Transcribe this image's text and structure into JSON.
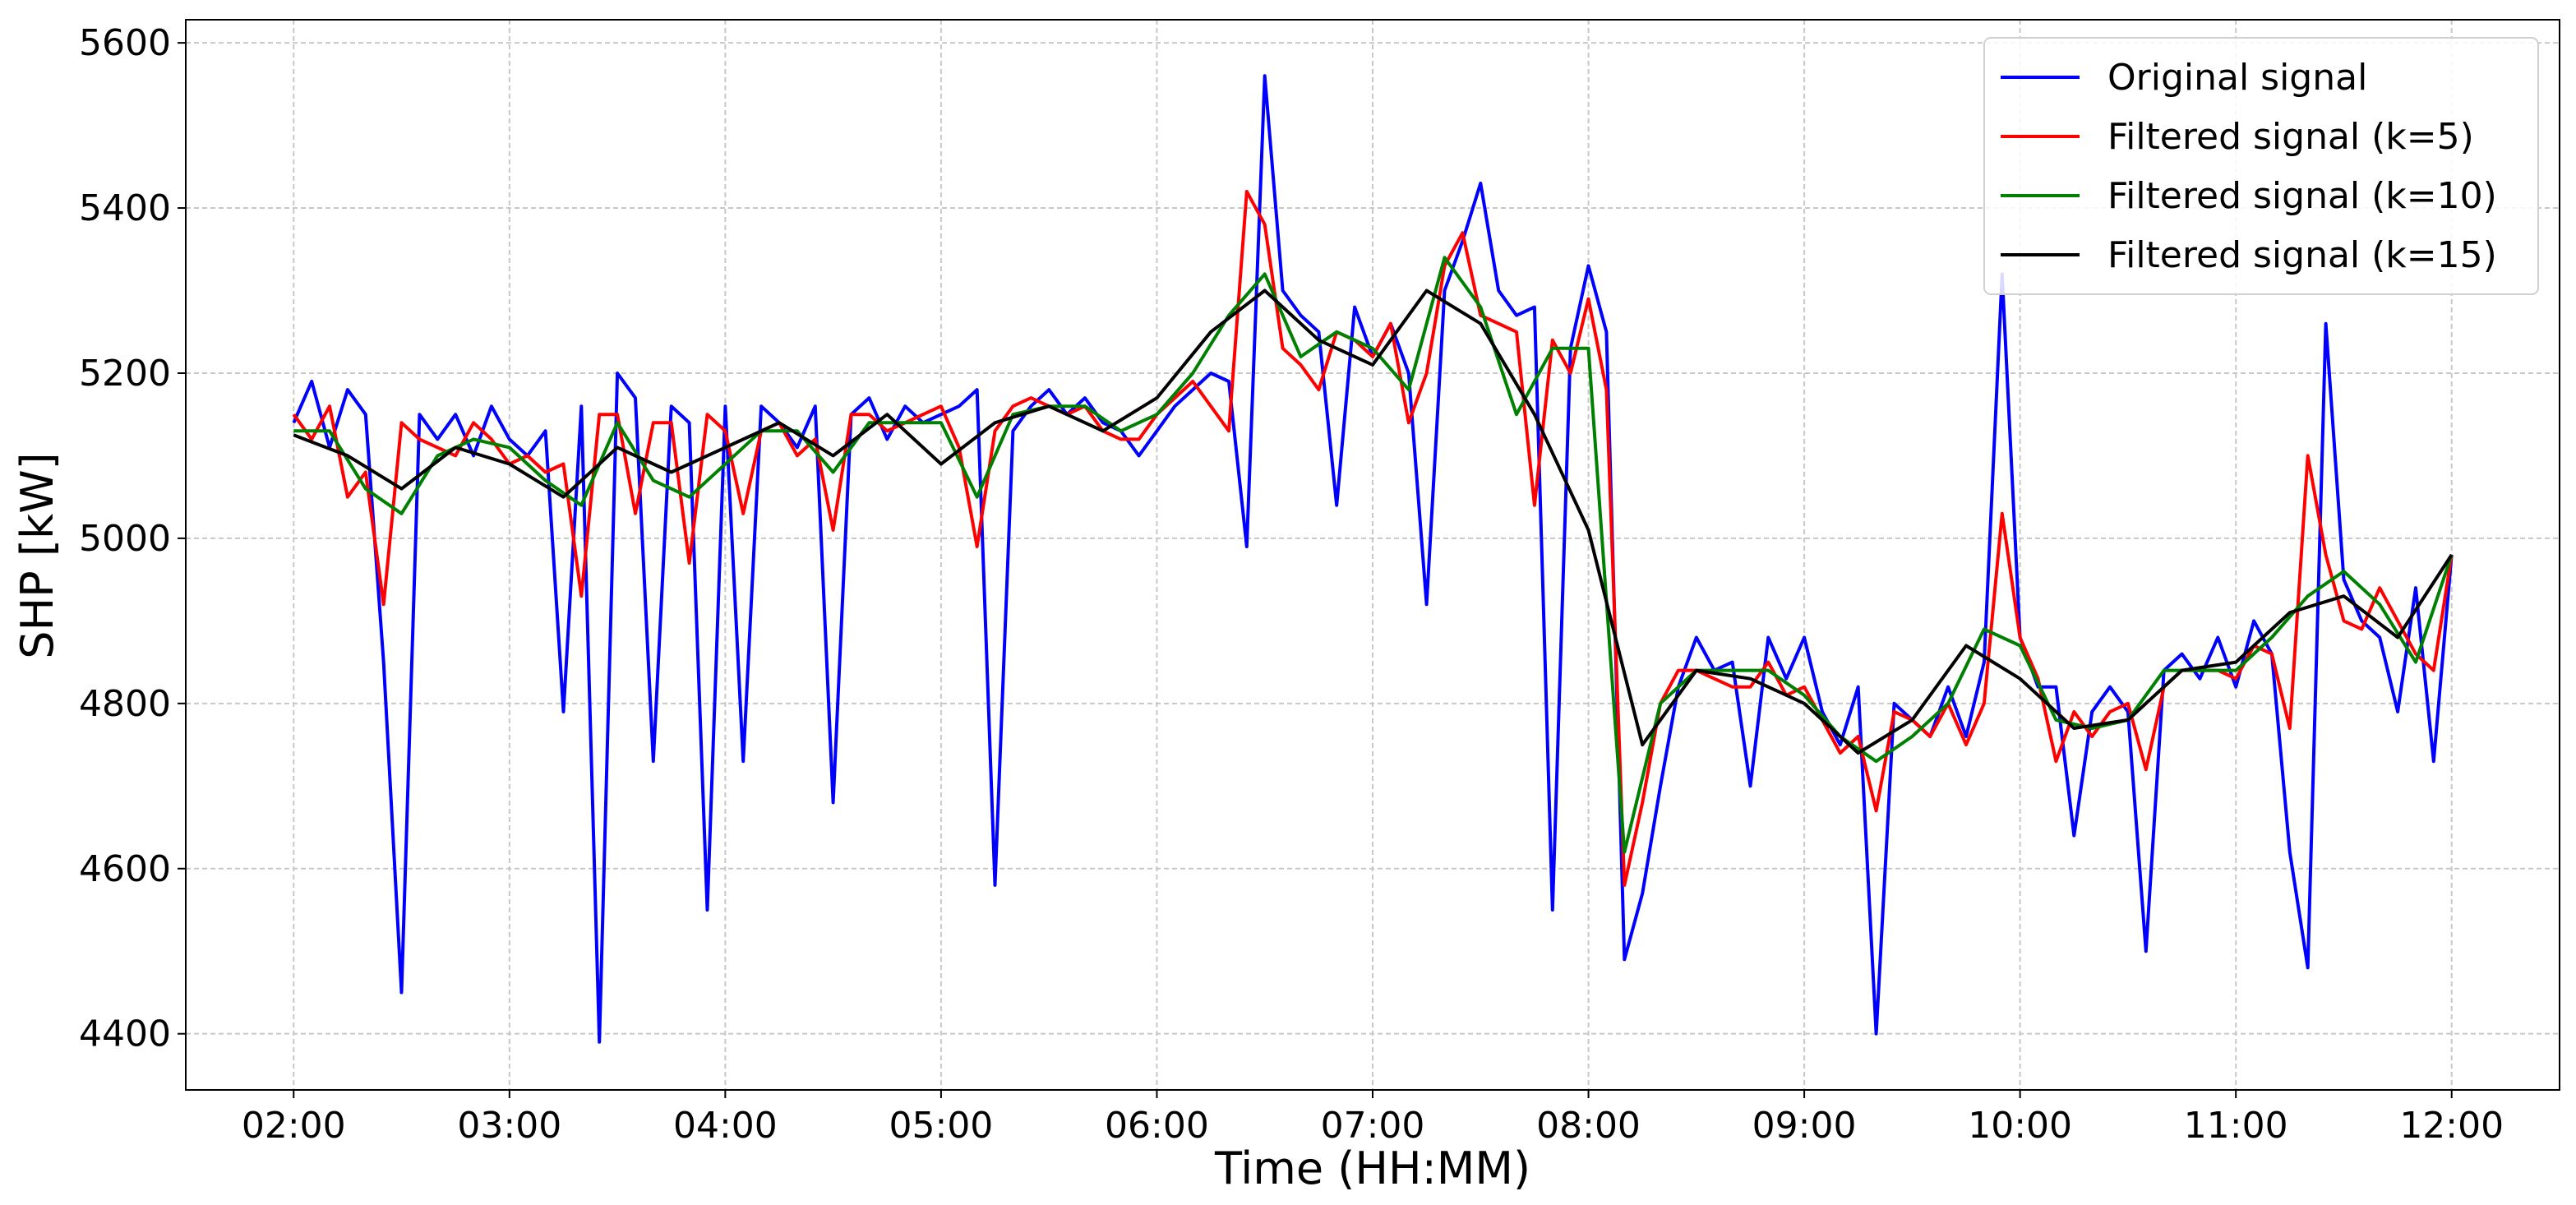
{
  "chart_data": {
    "type": "line",
    "x_label": "Time (HH:MM)",
    "y_label": "SHP [kW]",
    "x": [
      "02:00",
      "02:05",
      "02:10",
      "02:15",
      "02:20",
      "02:25",
      "02:30",
      "02:35",
      "02:40",
      "02:45",
      "02:50",
      "02:55",
      "03:00",
      "03:05",
      "03:10",
      "03:15",
      "03:20",
      "03:25",
      "03:30",
      "03:35",
      "03:40",
      "03:45",
      "03:50",
      "03:55",
      "04:00",
      "04:05",
      "04:10",
      "04:15",
      "04:20",
      "04:25",
      "04:30",
      "04:35",
      "04:40",
      "04:45",
      "04:50",
      "04:55",
      "05:00",
      "05:05",
      "05:10",
      "05:15",
      "05:20",
      "05:25",
      "05:30",
      "05:35",
      "05:40",
      "05:45",
      "05:50",
      "05:55",
      "06:00",
      "06:05",
      "06:10",
      "06:15",
      "06:20",
      "06:25",
      "06:30",
      "06:35",
      "06:40",
      "06:45",
      "06:50",
      "06:55",
      "07:00",
      "07:05",
      "07:10",
      "07:15",
      "07:20",
      "07:25",
      "07:30",
      "07:35",
      "07:40",
      "07:45",
      "07:50",
      "07:55",
      "08:00",
      "08:05",
      "08:10",
      "08:15",
      "08:20",
      "08:25",
      "08:30",
      "08:35",
      "08:40",
      "08:45",
      "08:50",
      "08:55",
      "09:00",
      "09:05",
      "09:10",
      "09:15",
      "09:20",
      "09:25",
      "09:30",
      "09:35",
      "09:40",
      "09:45",
      "09:50",
      "09:55",
      "10:00",
      "10:05",
      "10:10",
      "10:15",
      "10:20",
      "10:25",
      "10:30",
      "10:35",
      "10:40",
      "10:45",
      "10:50",
      "10:55",
      "11:00",
      "11:05",
      "11:10",
      "11:15",
      "11:20",
      "11:25",
      "11:30",
      "11:35",
      "11:40",
      "11:45",
      "11:50",
      "11:55",
      "12:00"
    ],
    "series": [
      {
        "name": "Original signal",
        "color": "#0000ff",
        "values": [
          5140,
          5190,
          5110,
          5180,
          5150,
          4850,
          4450,
          5150,
          5120,
          5150,
          5100,
          5160,
          5120,
          5100,
          5130,
          4790,
          5160,
          4390,
          5200,
          5170,
          4730,
          5160,
          5140,
          4550,
          5160,
          4730,
          5160,
          5140,
          5110,
          5160,
          4680,
          5150,
          5170,
          5120,
          5160,
          5140,
          5150,
          5160,
          5180,
          4580,
          5130,
          5160,
          5180,
          5150,
          5170,
          5140,
          5130,
          5100,
          5130,
          5160,
          5180,
          5200,
          5190,
          4990,
          5560,
          5300,
          5270,
          5250,
          5040,
          5280,
          5220,
          5260,
          5200,
          4920,
          5300,
          5360,
          5430,
          5300,
          5270,
          5280,
          4550,
          5230,
          5330,
          5250,
          4490,
          4570,
          4700,
          4820,
          4880,
          4840,
          4850,
          4700,
          4880,
          4830,
          4880,
          4790,
          4750,
          4820,
          4400,
          4800,
          4780,
          4760,
          4820,
          4760,
          4850,
          5320,
          4880,
          4820,
          4820,
          4640,
          4790,
          4820,
          4790,
          4500,
          4840,
          4860,
          4830,
          4880,
          4820,
          4900,
          4860,
          4620,
          4480,
          5260,
          4950,
          4900,
          4880,
          4790,
          4940,
          4730,
          4980
        ]
      },
      {
        "name": "Filtered signal (k=5)",
        "color": "#ff0000",
        "values": [
          5150,
          5120,
          5160,
          5050,
          5080,
          4920,
          5140,
          5120,
          5110,
          5100,
          5140,
          5120,
          5090,
          5100,
          5080,
          5090,
          4930,
          5150,
          5150,
          5030,
          5140,
          5140,
          4970,
          5150,
          5130,
          5030,
          5130,
          5140,
          5100,
          5120,
          5010,
          5150,
          5150,
          5130,
          5140,
          5150,
          5160,
          5110,
          4990,
          5130,
          5160,
          5170,
          5160,
          5150,
          5160,
          5130,
          5120,
          5120,
          5150,
          5170,
          5190,
          5160,
          5130,
          5420,
          5380,
          5230,
          5210,
          5180,
          5250,
          5240,
          5220,
          5260,
          5140,
          5200,
          5330,
          5370,
          5270,
          5260,
          5250,
          5040,
          5240,
          5200,
          5290,
          5180,
          4580,
          4680,
          4800,
          4840,
          4840,
          4830,
          4820,
          4820,
          4850,
          4810,
          4820,
          4780,
          4740,
          4760,
          4670,
          4790,
          4780,
          4760,
          4800,
          4750,
          4800,
          5030,
          4880,
          4830,
          4730,
          4790,
          4760,
          4790,
          4800,
          4720,
          4820,
          4840,
          4840,
          4840,
          4830,
          4870,
          4860,
          4770,
          5100,
          4980,
          4900,
          4890,
          4940,
          4900,
          4860,
          4840,
          4980
        ]
      },
      {
        "name": "Filtered signal (k=10)",
        "color": "#008000",
        "x": [
          "02:00",
          "02:10",
          "02:20",
          "02:30",
          "02:40",
          "02:50",
          "03:00",
          "03:10",
          "03:20",
          "03:30",
          "03:40",
          "03:50",
          "04:00",
          "04:10",
          "04:20",
          "04:30",
          "04:40",
          "04:50",
          "05:00",
          "05:10",
          "05:20",
          "05:30",
          "05:40",
          "05:50",
          "06:00",
          "06:10",
          "06:20",
          "06:30",
          "06:40",
          "06:50",
          "07:00",
          "07:10",
          "07:20",
          "07:30",
          "07:40",
          "07:50",
          "08:00",
          "08:10",
          "08:20",
          "08:30",
          "08:40",
          "08:50",
          "09:00",
          "09:10",
          "09:20",
          "09:30",
          "09:40",
          "09:50",
          "10:00",
          "10:10",
          "10:20",
          "10:30",
          "10:40",
          "10:50",
          "11:00",
          "11:10",
          "11:20",
          "11:30",
          "11:40",
          "11:50",
          "12:00"
        ],
        "values": [
          5130,
          5130,
          5060,
          5030,
          5100,
          5120,
          5110,
          5070,
          5040,
          5140,
          5070,
          5050,
          5090,
          5130,
          5130,
          5080,
          5140,
          5140,
          5140,
          5050,
          5150,
          5160,
          5160,
          5130,
          5150,
          5200,
          5270,
          5320,
          5220,
          5250,
          5230,
          5180,
          5340,
          5280,
          5150,
          5230,
          5230,
          4620,
          4800,
          4840,
          4840,
          4840,
          4810,
          4760,
          4730,
          4760,
          4800,
          4890,
          4870,
          4780,
          4770,
          4780,
          4840,
          4840,
          4840,
          4880,
          4930,
          4960,
          4920,
          4850,
          4980
        ]
      },
      {
        "name": "Filtered signal (k=15)",
        "color": "#000000",
        "x": [
          "02:00",
          "02:15",
          "02:30",
          "02:45",
          "03:00",
          "03:15",
          "03:30",
          "03:45",
          "04:00",
          "04:15",
          "04:30",
          "04:45",
          "05:00",
          "05:15",
          "05:30",
          "05:45",
          "06:00",
          "06:15",
          "06:30",
          "06:45",
          "07:00",
          "07:15",
          "07:30",
          "07:45",
          "08:00",
          "08:15",
          "08:30",
          "08:45",
          "09:00",
          "09:15",
          "09:30",
          "09:45",
          "10:00",
          "10:15",
          "10:30",
          "10:45",
          "11:00",
          "11:15",
          "11:30",
          "11:45",
          "12:00"
        ],
        "values": [
          5125,
          5100,
          5060,
          5110,
          5090,
          5050,
          5110,
          5080,
          5110,
          5140,
          5100,
          5150,
          5090,
          5140,
          5160,
          5130,
          5170,
          5250,
          5300,
          5240,
          5210,
          5300,
          5260,
          5150,
          5010,
          4750,
          4840,
          4830,
          4800,
          4740,
          4780,
          4870,
          4830,
          4770,
          4780,
          4840,
          4850,
          4910,
          4930,
          4880,
          4980
        ]
      }
    ],
    "xlim": [
      "01:30",
      "12:30"
    ],
    "xticks": [
      "02:00",
      "03:00",
      "04:00",
      "05:00",
      "06:00",
      "07:00",
      "08:00",
      "09:00",
      "10:00",
      "11:00",
      "12:00"
    ],
    "ylim": [
      4332,
      5628
    ],
    "yticks": [
      4400,
      4600,
      4800,
      5000,
      5200,
      5400,
      5600
    ],
    "grid": true,
    "legend": "upper right"
  }
}
